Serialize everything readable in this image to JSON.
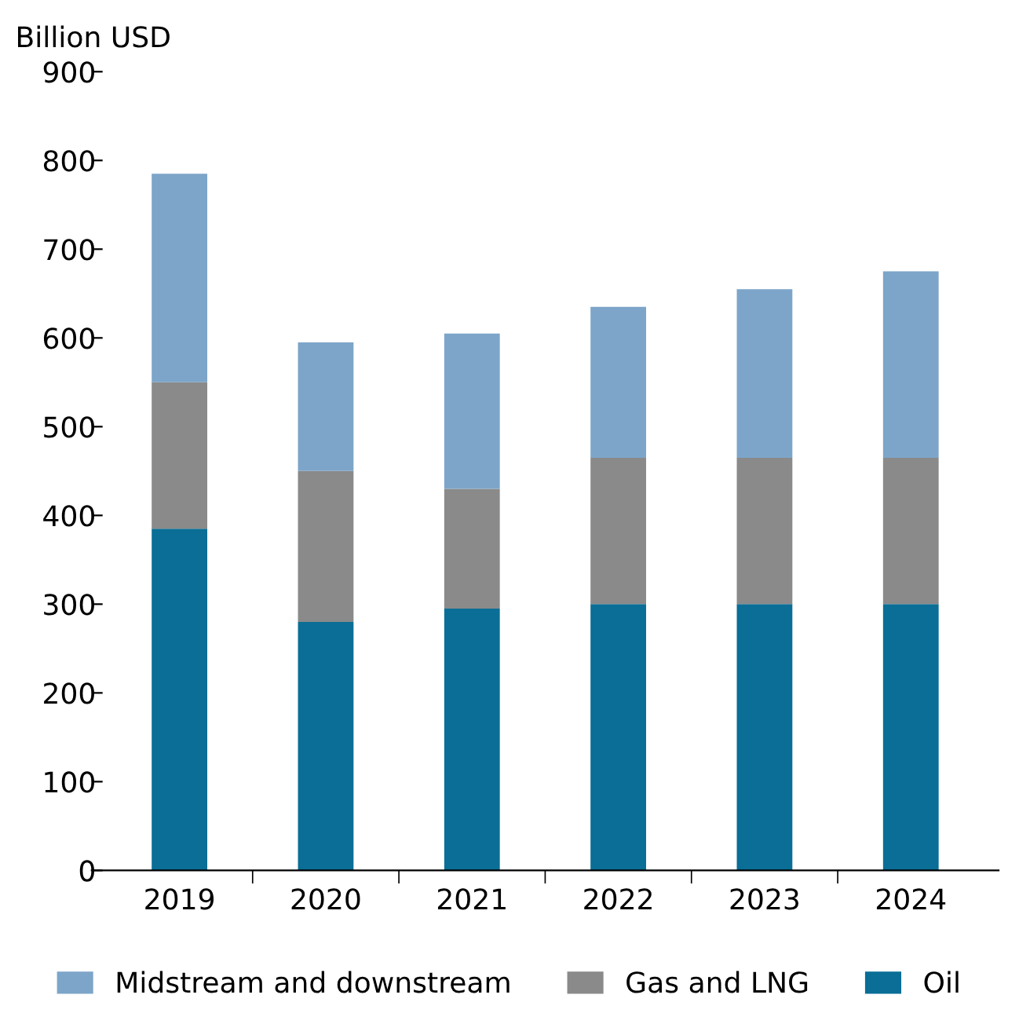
{
  "chart_data": {
    "type": "bar",
    "ylabel": "Billion USD",
    "stacked": true,
    "categories": [
      "2019",
      "2020",
      "2021",
      "2022",
      "2023",
      "2024"
    ],
    "series": [
      {
        "name": "Oil",
        "color": "#0a6e96",
        "values": [
          385,
          280,
          295,
          300,
          300,
          300
        ]
      },
      {
        "name": "Gas and LNG",
        "color": "#8a8a8a",
        "values": [
          165,
          170,
          135,
          165,
          165,
          165
        ]
      },
      {
        "name": "Midstream and downstream",
        "color": "#7da5c9",
        "values": [
          235,
          145,
          175,
          170,
          190,
          210
        ]
      }
    ],
    "ylim": [
      0,
      900
    ],
    "yticks": [
      0,
      100,
      200,
      300,
      400,
      500,
      600,
      700,
      800,
      900
    ],
    "grid": false,
    "legend": "bottom"
  }
}
